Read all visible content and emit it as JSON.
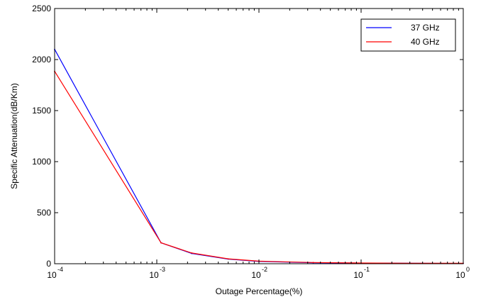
{
  "chart_data": {
    "type": "line",
    "xscale": "log",
    "xlim": [
      0.0001,
      1
    ],
    "ylim": [
      0,
      2500
    ],
    "yticks": [
      0,
      500,
      1000,
      1500,
      2000,
      2500
    ],
    "xtick_bases": [
      "10",
      "10",
      "10",
      "10",
      "10"
    ],
    "xtick_exps": [
      "-4",
      "-3",
      "-2",
      "-1",
      "0"
    ],
    "xtick_values": [
      0.0001,
      0.001,
      0.01,
      0.1,
      1
    ],
    "xlabel": "Outage Percentage(%)",
    "ylabel": "Specific Attenuation(dB/Km)",
    "grid": false,
    "legend_position": "top-right",
    "series": [
      {
        "name": "37 GHz",
        "color": "#0000ff",
        "x": [
          0.0001,
          0.0011,
          0.0022,
          0.005,
          0.01,
          0.034,
          0.1,
          0.3,
          1
        ],
        "y": [
          2100,
          205,
          100,
          45,
          22,
          10,
          6,
          4,
          3
        ]
      },
      {
        "name": "40 GHz",
        "color": "#ff0000",
        "x": [
          0.0001,
          0.0011,
          0.0022,
          0.005,
          0.01,
          0.034,
          0.1,
          0.3,
          1
        ],
        "y": [
          1885,
          205,
          105,
          48,
          25,
          12,
          7,
          5,
          4
        ]
      }
    ]
  }
}
